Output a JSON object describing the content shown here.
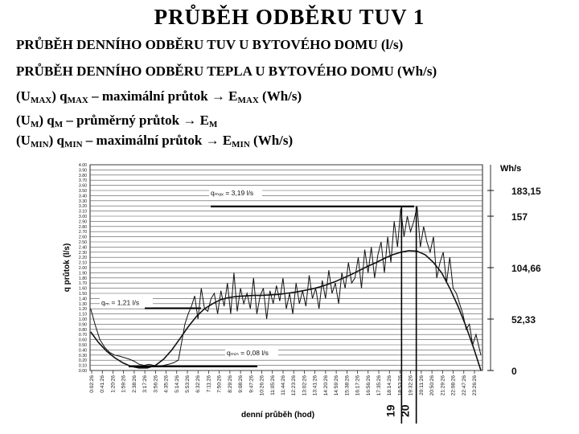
{
  "title": "PRŮBĚH  ODBĚRU  TUV  1",
  "lines": [
    {
      "parts": [
        {
          "t": "PRŮBĚH DENNÍHO ODBĚRU TUV U BYTOVÉHO  DOMU  (l/s)"
        }
      ]
    },
    {
      "parts": [
        {
          "t": "PRŮBĚH DENNÍHO ODBĚRU TEPLA U BYTOVÉHO DOMU (Wh/s)"
        }
      ]
    },
    {
      "parts": [
        {
          "t": "(U"
        },
        {
          "t": "MAX",
          "sub": true
        },
        {
          "t": ") q"
        },
        {
          "t": "MAX",
          "sub": true
        },
        {
          "t": " – maximální průtok "
        },
        {
          "t": "→",
          "arrow": true
        },
        {
          "t": " E"
        },
        {
          "t": "MAX",
          "sub": true
        },
        {
          "t": " (Wh/s)"
        }
      ]
    },
    {
      "parts": [
        {
          "t": "(U"
        },
        {
          "t": "M",
          "sub": true
        },
        {
          "t": ") q"
        },
        {
          "t": "M",
          "sub": true
        },
        {
          "t": " – průměrný průtok "
        },
        {
          "t": "→",
          "arrow": true
        },
        {
          "t": " E"
        },
        {
          "t": "M",
          "sub": true
        }
      ]
    },
    {
      "parts": [
        {
          "t": "(U"
        },
        {
          "t": "MIN",
          "sub": true
        },
        {
          "t": ") q"
        },
        {
          "t": "MIN",
          "sub": true
        },
        {
          "t": " – maximální průtok "
        },
        {
          "t": "→",
          "arrow": true
        },
        {
          "t": " E"
        },
        {
          "t": "MIN",
          "sub": true
        },
        {
          "t": " (Wh/s)"
        }
      ]
    }
  ],
  "chart_data": {
    "type": "line",
    "ylabel": "q  průtok  (l/s)",
    "xlabel": "denní průběh   (hod)",
    "ylim": [
      0,
      4.0
    ],
    "y_ticks": [
      "4.00",
      "3.90",
      "3.80",
      "3.70",
      "3.60",
      "3.50",
      "3.40",
      "3.30",
      "3.20",
      "3.10",
      "3.00",
      "2.90",
      "2.80",
      "2.70",
      "2.60",
      "2.50",
      "2.40",
      "2.30",
      "2.20",
      "2.10",
      "2.00",
      "1.90",
      "1.80",
      "1.70",
      "1.60",
      "1.50",
      "1.40",
      "1.30",
      "1.20",
      "1.10",
      "1.00",
      "0.90",
      "0.80",
      "0.70",
      "0.60",
      "0.50",
      "0.40",
      "0.30",
      "0.20",
      "0.10",
      "0.00"
    ],
    "x_ticks": [
      "0:02:26",
      "0:41:26",
      "1:20:26",
      "1:59:26",
      "2:38:26",
      "3:17:26",
      "3:56:26",
      "4:35:26",
      "5:14:26",
      "5:53:26",
      "6:32:26",
      "7:11:26",
      "7:50:26",
      "8:29:26",
      "9:08:26",
      "9:47:26",
      "10:26:26",
      "11:05:26",
      "11:44:26",
      "12:23:26",
      "13:02:26",
      "13:41:26",
      "14:20:26",
      "14:59:26",
      "15:38:26",
      "16:17:26",
      "16:56:26",
      "17:35:26",
      "18:14:26",
      "18:53:26",
      "19:32:26",
      "20:11:26",
      "20:50:26",
      "21:29:26",
      "22:08:26",
      "22:47:26",
      "23:26:26"
    ],
    "right_axis": {
      "unit": "Wh/s",
      "ticks": [
        {
          "label": "183,15",
          "q": 3.5
        },
        {
          "label": "157",
          "q": 3.0
        },
        {
          "label": "104,66",
          "q": 2.0
        },
        {
          "label": "52,33",
          "q": 1.0
        },
        {
          "label": "0",
          "q": 0.0
        }
      ]
    },
    "hour_marks": [
      {
        "label": "19",
        "x": 19.05
      },
      {
        "label": "20",
        "x": 19.95
      }
    ],
    "annotations": [
      {
        "label": "qₘₐₓ = 3,19 l/s",
        "q": 3.19
      },
      {
        "label": "qₘ = 1,21 l/s",
        "q": 1.21
      },
      {
        "label": "qₘᵢₙ = 0,08 l/s",
        "q": 0.08
      }
    ],
    "series": [
      {
        "x": [
          0.04,
          0.3,
          0.6,
          0.9,
          1.2,
          1.5,
          1.8,
          2.1,
          2.4,
          2.7,
          3.0,
          3.3,
          3.6,
          3.9,
          4.2,
          4.5,
          4.8,
          5.1,
          5.4,
          5.6,
          5.8,
          6.0,
          6.2,
          6.4,
          6.6,
          6.8,
          7.0,
          7.2,
          7.4,
          7.6,
          7.8,
          8.0,
          8.2,
          8.4,
          8.6,
          8.8,
          9.0,
          9.2,
          9.4,
          9.6,
          9.8,
          10.0,
          10.2,
          10.4,
          10.6,
          10.8,
          11.0,
          11.2,
          11.4,
          11.6,
          11.8,
          12.0,
          12.2,
          12.4,
          12.6,
          12.8,
          13.0,
          13.2,
          13.4,
          13.6,
          13.8,
          14.0,
          14.2,
          14.4,
          14.6,
          14.8,
          15.0,
          15.2,
          15.4,
          15.6,
          15.8,
          16.0,
          16.2,
          16.4,
          16.6,
          16.8,
          17.0,
          17.2,
          17.4,
          17.6,
          17.8,
          18.0,
          18.2,
          18.4,
          18.6,
          18.8,
          19.0,
          19.2,
          19.4,
          19.6,
          19.8,
          20.0,
          20.2,
          20.4,
          20.6,
          20.8,
          21.0,
          21.2,
          21.4,
          21.6,
          21.8,
          22.0,
          22.2,
          22.4,
          22.6,
          22.8,
          23.0,
          23.2,
          23.4,
          23.6,
          23.9
        ],
        "values": [
          1.2,
          0.9,
          0.6,
          0.45,
          0.35,
          0.3,
          0.28,
          0.25,
          0.22,
          0.18,
          0.12,
          0.1,
          0.12,
          0.1,
          0.08,
          0.1,
          0.12,
          0.15,
          0.2,
          0.55,
          0.9,
          1.1,
          1.25,
          1.45,
          1.0,
          1.6,
          1.2,
          1.15,
          1.4,
          1.5,
          1.1,
          1.55,
          1.25,
          1.7,
          1.1,
          1.9,
          1.15,
          1.6,
          1.3,
          1.5,
          1.2,
          1.8,
          1.1,
          1.45,
          1.6,
          1.0,
          1.55,
          1.3,
          1.65,
          1.35,
          1.8,
          1.2,
          1.5,
          1.1,
          1.7,
          1.3,
          1.55,
          1.25,
          1.85,
          1.4,
          1.6,
          1.2,
          1.75,
          1.4,
          1.95,
          1.5,
          1.7,
          1.3,
          1.9,
          1.6,
          2.1,
          1.7,
          1.8,
          2.2,
          1.6,
          2.35,
          1.9,
          2.4,
          1.8,
          2.25,
          2.5,
          1.9,
          2.6,
          2.1,
          2.9,
          2.4,
          3.15,
          2.6,
          3.0,
          2.7,
          2.9,
          3.19,
          2.4,
          2.8,
          2.5,
          2.3,
          2.6,
          1.8,
          2.1,
          2.3,
          1.7,
          2.2,
          1.6,
          1.5,
          1.3,
          1.1,
          0.8,
          0.9,
          0.5,
          0.7,
          0.3
        ],
        "color": "#111111"
      },
      {
        "x": [
          0.04,
          0.5,
          1.0,
          1.5,
          2.0,
          2.5,
          3.0,
          3.5,
          4.0,
          4.5,
          5.0,
          5.5,
          6.0,
          6.5,
          7.0,
          7.5,
          8.0,
          8.5,
          9.0,
          9.5,
          10.0,
          10.5,
          11.0,
          11.5,
          12.0,
          12.5,
          13.0,
          13.5,
          14.0,
          14.5,
          15.0,
          15.5,
          16.0,
          16.5,
          17.0,
          17.5,
          18.0,
          18.5,
          19.0,
          19.5,
          20.0,
          20.5,
          21.0,
          21.5,
          22.0,
          22.5,
          23.0,
          23.5,
          23.9
        ],
        "values": [
          0.75,
          0.55,
          0.38,
          0.25,
          0.15,
          0.08,
          0.05,
          0.05,
          0.1,
          0.22,
          0.4,
          0.62,
          0.85,
          1.05,
          1.2,
          1.3,
          1.38,
          1.42,
          1.44,
          1.45,
          1.46,
          1.46,
          1.47,
          1.48,
          1.5,
          1.52,
          1.55,
          1.58,
          1.62,
          1.67,
          1.73,
          1.8,
          1.87,
          1.95,
          2.03,
          2.1,
          2.18,
          2.25,
          2.3,
          2.33,
          2.32,
          2.25,
          2.1,
          1.9,
          1.6,
          1.25,
          0.85,
          0.4,
          0.0
        ],
        "color": "#111111"
      }
    ]
  }
}
